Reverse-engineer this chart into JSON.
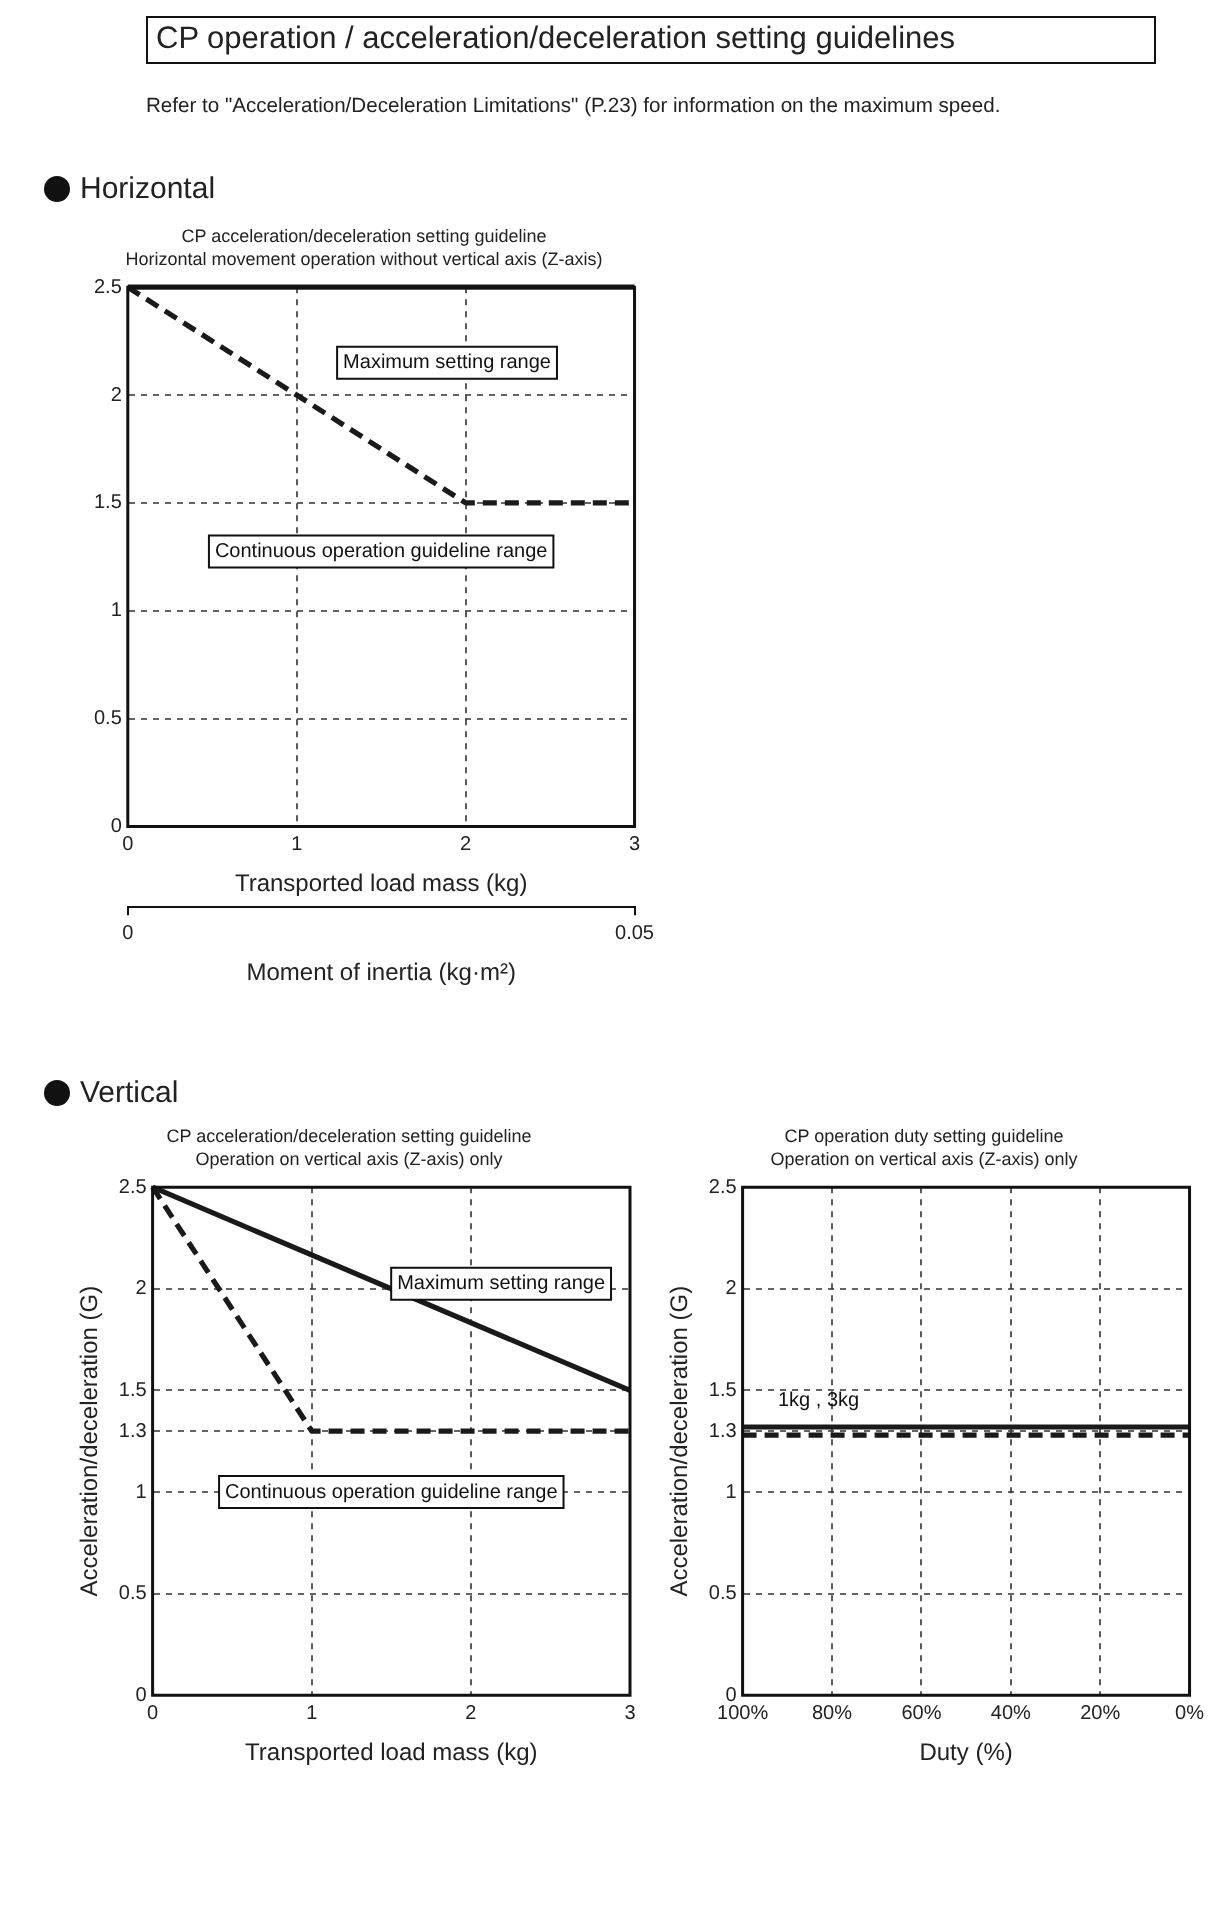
{
  "chart_data": [
    {
      "type": "line",
      "title": "CP acceleration/deceleration setting guideline",
      "subtitle": "Horizontal movement operation without vertical axis (Z-axis)",
      "xlabel": "Transported load mass (kg)",
      "x2label": "Moment of inertia (kg·m²)",
      "xlim": [
        0,
        3
      ],
      "xticks": [
        0,
        1,
        2,
        3
      ],
      "x2lim": [
        0,
        0.05
      ],
      "x2ticks": [
        0,
        0.05
      ],
      "ylim": [
        0,
        2.5
      ],
      "yticks": [
        0,
        0.5,
        1,
        1.5,
        2,
        2.5
      ],
      "grid": true,
      "marker": "none",
      "series": [
        {
          "color": "#1a1a1a",
          "line_style": "solid",
          "x": [
            0,
            3
          ],
          "values": [
            2.5,
            2.5
          ]
        },
        {
          "color": "#1a1a1a",
          "line_style": "dashed",
          "x": [
            0,
            2,
            3
          ],
          "values": [
            2.5,
            1.5,
            1.5
          ]
        }
      ],
      "annotations": [
        "CP operation / acceleration/deceleration setting guidelines",
        "Refer to \"Acceleration/Deceleration Limitations\" (P.23) for information on the maximum speed.",
        "Horizontal",
        "Maximum setting range",
        "Continuous operation guideline range"
      ]
    },
    {
      "type": "line",
      "title": "CP acceleration/deceleration setting guideline",
      "subtitle": "Operation on vertical axis (Z-axis) only",
      "xlabel": "Transported load mass (kg)",
      "ylabel": "Acceleration/deceleration (G)",
      "xlim": [
        0,
        3
      ],
      "xticks": [
        0,
        1,
        2,
        3
      ],
      "ylim": [
        0,
        2.5
      ],
      "yticks": [
        0,
        0.5,
        1,
        1.3,
        1.5,
        2,
        2.5
      ],
      "grid": true,
      "marker": "none",
      "series": [
        {
          "color": "#1a1a1a",
          "line_style": "solid",
          "x": [
            0,
            3
          ],
          "values": [
            2.5,
            1.5
          ]
        },
        {
          "color": "#1a1a1a",
          "line_style": "dashed",
          "x": [
            0,
            1,
            3
          ],
          "values": [
            2.5,
            1.3,
            1.3
          ]
        }
      ],
      "annotations": [
        "Vertical",
        "Maximum setting range",
        "Continuous operation guideline range"
      ]
    },
    {
      "type": "line",
      "title": "CP operation duty setting guideline",
      "subtitle": "Operation on vertical axis (Z-axis) only",
      "xlabel": "Duty (%)",
      "ylabel": "Acceleration/deceleration (G)",
      "xlim": [
        100,
        0
      ],
      "xticks": [
        {
          "value": 100,
          "label": "100%"
        },
        {
          "value": 80,
          "label": "80%"
        },
        {
          "value": 60,
          "label": "60%"
        },
        {
          "value": 40,
          "label": "40%"
        },
        {
          "value": 20,
          "label": "20%"
        },
        {
          "value": 0,
          "label": "0%"
        }
      ],
      "ylim": [
        0,
        2.5
      ],
      "yticks": [
        0,
        0.5,
        1,
        1.3,
        1.5,
        2,
        2.5
      ],
      "grid": true,
      "marker": "none",
      "series": [
        {
          "color": "#1a1a1a",
          "line_style": "solid",
          "x": [
            100,
            0
          ],
          "values": [
            1.32,
            1.32
          ]
        },
        {
          "color": "#1a1a1a",
          "line_style": "dashed",
          "x": [
            100,
            0
          ],
          "values": [
            1.28,
            1.28
          ]
        }
      ],
      "annotations": [
        "1kg , 3kg"
      ]
    }
  ]
}
